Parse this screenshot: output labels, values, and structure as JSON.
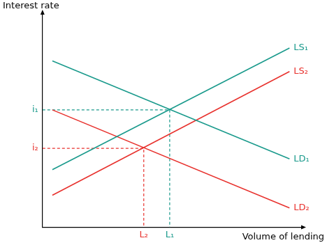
{
  "chart_data": {
    "type": "line",
    "xlabel": "Volume of lending",
    "ylabel": "Interest rate",
    "x": [
      4,
      100
    ],
    "series": [
      {
        "name": "LS₁",
        "color": "#1a9a8c",
        "values": [
          27,
          84
        ]
      },
      {
        "name": "LD₁",
        "color": "#1a9a8c",
        "values": [
          78,
          32
        ]
      },
      {
        "name": "LS₂",
        "color": "#e8322e",
        "values": [
          15,
          73
        ]
      },
      {
        "name": "LD₂",
        "color": "#e8322e",
        "values": [
          55,
          9
        ]
      }
    ],
    "xlim": [
      0,
      105
    ],
    "ylim": [
      0,
      100
    ],
    "xticks": [
      {
        "value": 41,
        "label": "L₂",
        "color": "#e8322e"
      },
      {
        "value": 51.5,
        "label": "L₁",
        "color": "#1a9a8c"
      }
    ],
    "yticks": [
      {
        "value": 37,
        "label": "i₂",
        "color": "#e8322e"
      },
      {
        "value": 55,
        "label": "i₁",
        "color": "#1a9a8c"
      }
    ],
    "grid": false,
    "legend": "none"
  }
}
